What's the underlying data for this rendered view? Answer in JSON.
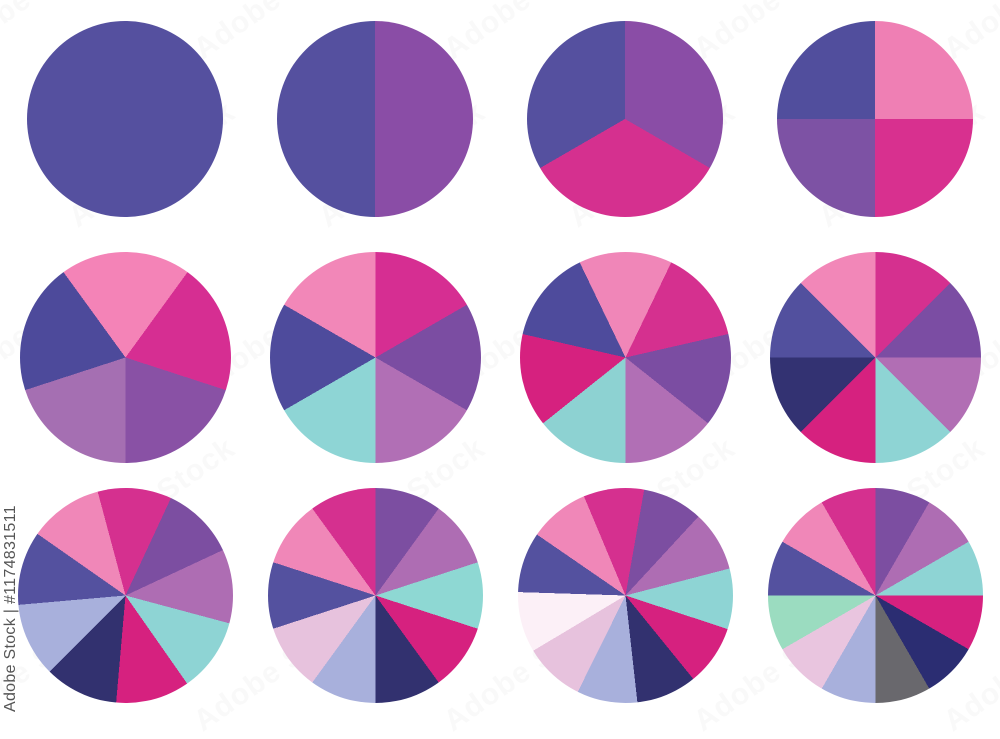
{
  "watermark": {
    "label": "Adobe Stock",
    "id_label": "Adobe Stock | #1174831511"
  },
  "palette": {
    "indigo": "#55509F",
    "purple": "#8A4DA6",
    "violet": "#7C4EA1",
    "magenta": "#D5308F",
    "pink": "#F087B8",
    "mauve": "#AE6DB3",
    "teal": "#8ED4D4",
    "crimson": "#D6217F",
    "navy": "#32316F",
    "lavender": "#A8B0DC",
    "pale_pink": "#E9C5DF",
    "blush_white": "#FCF0F7",
    "mint": "#9BDCC0",
    "gray": "#69686D"
  },
  "chart_data": [
    {
      "type": "pie",
      "label": "1-segment pie",
      "slices": 1,
      "values": [
        100
      ],
      "rotation_deg": 0,
      "colors": [
        "#55509F"
      ]
    },
    {
      "type": "pie",
      "label": "2-segment pie",
      "slices": 2,
      "values": [
        50,
        50
      ],
      "rotation_deg": 0,
      "colors": [
        "#8A4DA6",
        "#55509F"
      ]
    },
    {
      "type": "pie",
      "label": "3-segment pie",
      "slices": 3,
      "values": [
        33.3,
        33.3,
        33.3
      ],
      "rotation_deg": 0,
      "colors": [
        "#8A4DA6",
        "#D5308F",
        "#55509F"
      ]
    },
    {
      "type": "pie",
      "label": "4-segment pie",
      "slices": 4,
      "values": [
        25,
        25,
        25,
        25
      ],
      "rotation_deg": 0,
      "colors": [
        "#EF7FB4",
        "#D8308F",
        "#7D52A4",
        "#514E9D"
      ]
    },
    {
      "type": "pie",
      "label": "5-segment pie",
      "slices": 5,
      "values": [
        20,
        20,
        20,
        20,
        20
      ],
      "rotation_deg": 36,
      "colors": [
        "#D62E92",
        "#8951A5",
        "#A56FB2",
        "#4D4A9B",
        "#F483B7"
      ]
    },
    {
      "type": "pie",
      "label": "6-segment pie",
      "slices": 6,
      "values": [
        16.7,
        16.7,
        16.7,
        16.7,
        16.7,
        16.7
      ],
      "rotation_deg": 0,
      "colors": [
        "#D62E92",
        "#7B4DA2",
        "#B16FB5",
        "#8ED5D5",
        "#4E4B9C",
        "#F287B8"
      ]
    },
    {
      "type": "pie",
      "label": "7-segment pie",
      "slices": 7,
      "values": [
        14.3,
        14.3,
        14.3,
        14.3,
        14.3,
        14.3,
        14.3
      ],
      "rotation_deg": 25.7,
      "colors": [
        "#D5308F",
        "#7B4DA2",
        "#B16FB5",
        "#8DD2D2",
        "#D6217F",
        "#4E4B9C",
        "#F086B8"
      ]
    },
    {
      "type": "pie",
      "label": "8-segment pie",
      "slices": 8,
      "values": [
        12.5,
        12.5,
        12.5,
        12.5,
        12.5,
        12.5,
        12.5,
        12.5
      ],
      "rotation_deg": 0,
      "colors": [
        "#D5308F",
        "#7B4DA3",
        "#B16EB4",
        "#8ED4D4",
        "#D6217F",
        "#333272",
        "#52509E",
        "#F287B8"
      ]
    },
    {
      "type": "pie",
      "label": "9-segment pie",
      "slices": 9,
      "values": [
        11.1,
        11.1,
        11.1,
        11.1,
        11.1,
        11.1,
        11.1,
        11.1,
        11.1
      ],
      "rotation_deg": -15,
      "colors": [
        "#D5308F",
        "#7C4EA1",
        "#AE6DB3",
        "#8ED4D4",
        "#D6217F",
        "#32316F",
        "#A8B0DC",
        "#54519F",
        "#F087B8"
      ]
    },
    {
      "type": "pie",
      "label": "10-segment pie",
      "slices": 10,
      "values": [
        10,
        10,
        10,
        10,
        10,
        10,
        10,
        10,
        10,
        10
      ],
      "rotation_deg": 0,
      "colors": [
        "#7C4EA1",
        "#AE6DB3",
        "#8ED8D3",
        "#D6217F",
        "#32316F",
        "#A8B0DC",
        "#E7C2DD",
        "#54519F",
        "#F087B8",
        "#D5308F"
      ]
    },
    {
      "type": "pie",
      "label": "11-segment pie",
      "slices": 11,
      "values": [
        9.1,
        9.1,
        9.1,
        9.1,
        9.1,
        9.1,
        9.1,
        9.1,
        9.1,
        9.1,
        9.1
      ],
      "rotation_deg": 10,
      "colors": [
        "#7C4EA1",
        "#AE6DB3",
        "#8ED4D4",
        "#D6217F",
        "#32316F",
        "#A8B0DC",
        "#E7C2DD",
        "#FCF0F7",
        "#54519F",
        "#F087B8",
        "#D5308F"
      ]
    },
    {
      "type": "pie",
      "label": "12-segment pie",
      "slices": 12,
      "values": [
        8.3,
        8.3,
        8.3,
        8.3,
        8.3,
        8.3,
        8.3,
        8.3,
        8.3,
        8.3,
        8.3,
        8.3
      ],
      "rotation_deg": 0,
      "colors": [
        "#7C4EA1",
        "#AE6DB3",
        "#8ED4D4",
        "#D6217F",
        "#2B2D72",
        "#69686D",
        "#A8B0DC",
        "#E9C5DF",
        "#9BDCC0",
        "#54519F",
        "#F087B8",
        "#D5308F"
      ]
    }
  ]
}
